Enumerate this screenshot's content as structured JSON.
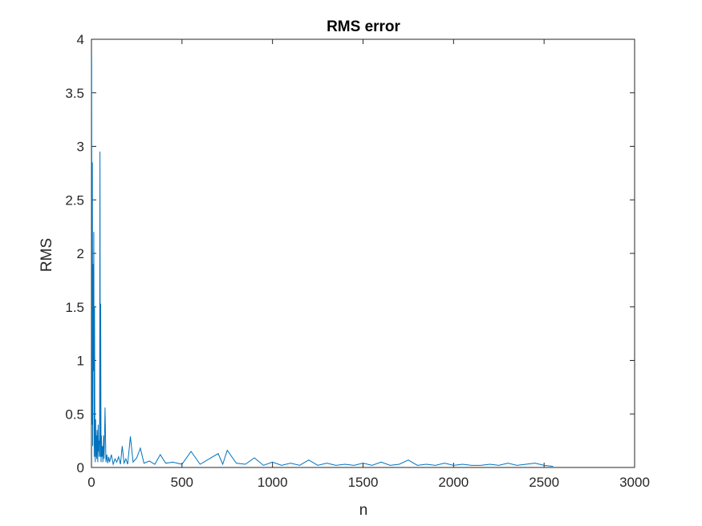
{
  "chart_data": {
    "type": "line",
    "title": "RMS error",
    "xlabel": "n",
    "ylabel": "RMS",
    "xlim": [
      0,
      3000
    ],
    "ylim": [
      0,
      4
    ],
    "grid": false,
    "legend": "none",
    "line_color": "#0072BD",
    "x_ticks": [
      0,
      500,
      1000,
      1500,
      2000,
      2500,
      3000
    ],
    "x_tick_labels": [
      "0",
      "500",
      "1000",
      "1500",
      "2000",
      "2500",
      "3000"
    ],
    "y_ticks": [
      0,
      0.5,
      1,
      1.5,
      2,
      2.5,
      3,
      3.5,
      4
    ],
    "y_tick_labels": [
      "0",
      "0.5",
      "1",
      "1.5",
      "2",
      "2.5",
      "3",
      "3.5",
      "4"
    ],
    "series": [
      {
        "x": [
          1,
          3,
          5,
          7,
          9,
          11,
          13,
          15,
          17,
          19,
          21,
          23,
          25,
          27,
          29,
          31,
          33,
          35,
          37,
          39,
          41,
          43,
          45,
          47,
          49,
          51,
          53,
          55,
          57,
          59,
          61,
          63,
          65,
          67,
          70,
          75,
          80,
          85,
          90,
          95,
          100,
          110,
          120,
          130,
          140,
          150,
          160,
          170,
          180,
          190,
          200,
          215,
          230,
          250,
          270,
          290,
          320,
          350,
          380,
          410,
          450,
          500,
          550,
          600,
          650,
          700,
          725,
          750,
          800,
          850,
          900,
          950,
          1000,
          1050,
          1100,
          1150,
          1200,
          1250,
          1300,
          1350,
          1400,
          1450,
          1500,
          1550,
          1600,
          1650,
          1700,
          1750,
          1800,
          1850,
          1900,
          1950,
          2000,
          2050,
          2100,
          2150,
          2200,
          2250,
          2300,
          2350,
          2400,
          2450,
          2500,
          2550
        ],
        "y": [
          3.85,
          0.4,
          2.85,
          0.2,
          1.9,
          0.9,
          2.2,
          0.1,
          1.5,
          0.3,
          0.05,
          0.45,
          0.1,
          0.3,
          0.08,
          0.35,
          0.2,
          0.05,
          0.4,
          0.15,
          0.25,
          0.1,
          0.3,
          2.95,
          0.1,
          1.53,
          0.05,
          0.3,
          0.1,
          0.12,
          0.2,
          0.05,
          0.15,
          0.3,
          0.08,
          0.56,
          0.05,
          0.12,
          0.04,
          0.1,
          0.05,
          0.12,
          0.03,
          0.08,
          0.05,
          0.1,
          0.03,
          0.2,
          0.04,
          0.08,
          0.03,
          0.29,
          0.05,
          0.09,
          0.18,
          0.04,
          0.06,
          0.03,
          0.12,
          0.04,
          0.05,
          0.03,
          0.15,
          0.03,
          0.08,
          0.13,
          0.03,
          0.16,
          0.04,
          0.03,
          0.09,
          0.02,
          0.05,
          0.02,
          0.04,
          0.02,
          0.07,
          0.02,
          0.04,
          0.02,
          0.03,
          0.02,
          0.04,
          0.02,
          0.05,
          0.02,
          0.03,
          0.07,
          0.02,
          0.03,
          0.02,
          0.04,
          0.02,
          0.03,
          0.02,
          0.02,
          0.03,
          0.02,
          0.04,
          0.02,
          0.03,
          0.04,
          0.02,
          0.01
        ]
      }
    ]
  }
}
